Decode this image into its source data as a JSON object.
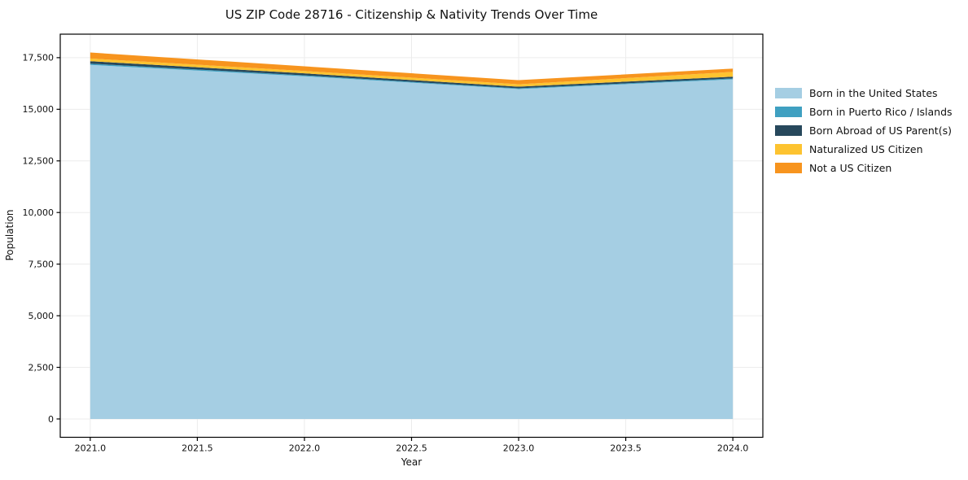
{
  "chart_data": {
    "type": "area",
    "stacked": true,
    "title": "US ZIP Code 28716 - Citizenship & Nativity Trends Over Time",
    "xlabel": "Year",
    "ylabel": "Population",
    "x": [
      2021,
      2022,
      2023,
      2024
    ],
    "series": [
      {
        "name": "Born in the United States",
        "color": "#a5cee3",
        "values": [
          17150,
          16600,
          15980,
          16450
        ]
      },
      {
        "name": "Born in Puerto Rico / Islands",
        "color": "#3fa0c1",
        "values": [
          60,
          45,
          35,
          45
        ]
      },
      {
        "name": "Born Abroad of US Parent(s)",
        "color": "#27485c",
        "values": [
          120,
          95,
          80,
          85
        ]
      },
      {
        "name": "Naturalized US Citizen",
        "color": "#fdc330",
        "values": [
          130,
          115,
          115,
          230
        ]
      },
      {
        "name": "Not a US Citizen",
        "color": "#f7941e",
        "values": [
          290,
          225,
          200,
          160
        ]
      }
    ],
    "totals_by_year": [
      17750,
      17080,
      16410,
      16970
    ],
    "xticks": [
      2021.0,
      2021.5,
      2022.0,
      2022.5,
      2023.0,
      2023.5,
      2024.0
    ],
    "yticks": [
      0,
      2500,
      5000,
      7500,
      10000,
      12500,
      15000,
      17500
    ],
    "xlim": [
      2020.86,
      2024.14
    ],
    "ylim": [
      -888,
      18638
    ],
    "grid": true,
    "grid_color": "#ececec",
    "axis_color": "#000000",
    "background_color": "#ffffff",
    "legend_position": "right-outside"
  }
}
